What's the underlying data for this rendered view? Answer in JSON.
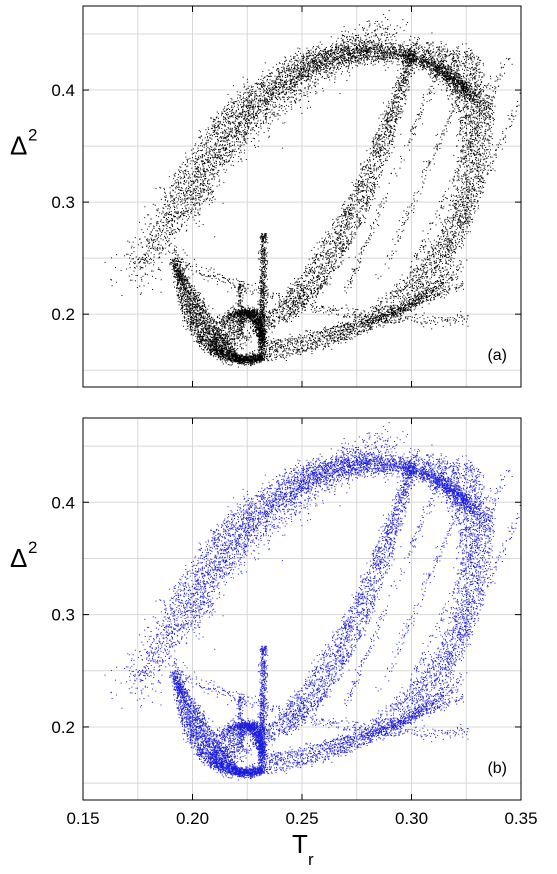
{
  "chart_data": [
    {
      "type": "scatter",
      "panel_label": "(a)",
      "ylabel": "Δ",
      "ylabel_superscript": "2",
      "xlabel": "",
      "xlim": [
        0.15,
        0.35
      ],
      "ylim": [
        0.135,
        0.475
      ],
      "yticks": [
        "0.2",
        "0.3",
        "0.4"
      ],
      "xticks": [],
      "grid": true,
      "point_color": "#000000",
      "series": [
        {
          "description_points": [
            [
              0.173,
              0.232
            ],
            [
              0.185,
              0.258
            ],
            [
              0.2,
              0.3
            ],
            [
              0.215,
              0.345
            ],
            [
              0.232,
              0.385
            ],
            [
              0.25,
              0.42
            ],
            [
              0.27,
              0.448
            ],
            [
              0.29,
              0.458
            ],
            [
              0.303,
              0.448
            ],
            [
              0.312,
              0.438
            ],
            [
              0.322,
              0.425
            ],
            [
              0.33,
              0.4
            ],
            [
              0.332,
              0.37
            ],
            [
              0.33,
              0.33
            ],
            [
              0.325,
              0.285
            ],
            [
              0.318,
              0.24
            ],
            [
              0.305,
              0.21
            ],
            [
              0.29,
              0.195
            ],
            [
              0.27,
              0.185
            ],
            [
              0.25,
              0.185
            ],
            [
              0.23,
              0.17
            ],
            [
              0.215,
              0.155
            ],
            [
              0.208,
              0.15
            ],
            [
              0.2,
              0.165
            ],
            [
              0.193,
              0.19
            ],
            [
              0.19,
              0.225
            ],
            [
              0.192,
              0.253
            ],
            [
              0.208,
              0.24
            ],
            [
              0.222,
              0.215
            ],
            [
              0.232,
              0.205
            ],
            [
              0.232,
              0.24
            ],
            [
              0.233,
              0.272
            ]
          ]
        }
      ]
    },
    {
      "type": "scatter",
      "panel_label": "(b)",
      "ylabel": "Δ",
      "ylabel_superscript": "2",
      "xlabel": "T",
      "xlabel_subscript": "r",
      "xlim": [
        0.15,
        0.35
      ],
      "ylim": [
        0.135,
        0.475
      ],
      "yticks": [
        "0.2",
        "0.3",
        "0.4"
      ],
      "xticks": [
        "0.15",
        "0.20",
        "0.25",
        "0.30",
        "0.35"
      ],
      "grid": true,
      "point_color": "#1e1edc",
      "series": [
        {
          "description_points": [
            [
              0.173,
              0.232
            ],
            [
              0.185,
              0.258
            ],
            [
              0.2,
              0.3
            ],
            [
              0.215,
              0.345
            ],
            [
              0.232,
              0.385
            ],
            [
              0.25,
              0.42
            ],
            [
              0.27,
              0.448
            ],
            [
              0.29,
              0.458
            ],
            [
              0.303,
              0.448
            ],
            [
              0.312,
              0.438
            ],
            [
              0.322,
              0.425
            ],
            [
              0.33,
              0.4
            ],
            [
              0.332,
              0.37
            ],
            [
              0.33,
              0.33
            ],
            [
              0.325,
              0.285
            ],
            [
              0.318,
              0.24
            ],
            [
              0.305,
              0.21
            ],
            [
              0.29,
              0.195
            ],
            [
              0.27,
              0.185
            ],
            [
              0.25,
              0.185
            ],
            [
              0.23,
              0.17
            ],
            [
              0.215,
              0.155
            ],
            [
              0.208,
              0.15
            ],
            [
              0.2,
              0.165
            ],
            [
              0.193,
              0.19
            ],
            [
              0.19,
              0.225
            ],
            [
              0.192,
              0.253
            ],
            [
              0.208,
              0.24
            ],
            [
              0.222,
              0.215
            ],
            [
              0.232,
              0.205
            ],
            [
              0.232,
              0.24
            ],
            [
              0.233,
              0.272
            ]
          ]
        }
      ]
    }
  ]
}
